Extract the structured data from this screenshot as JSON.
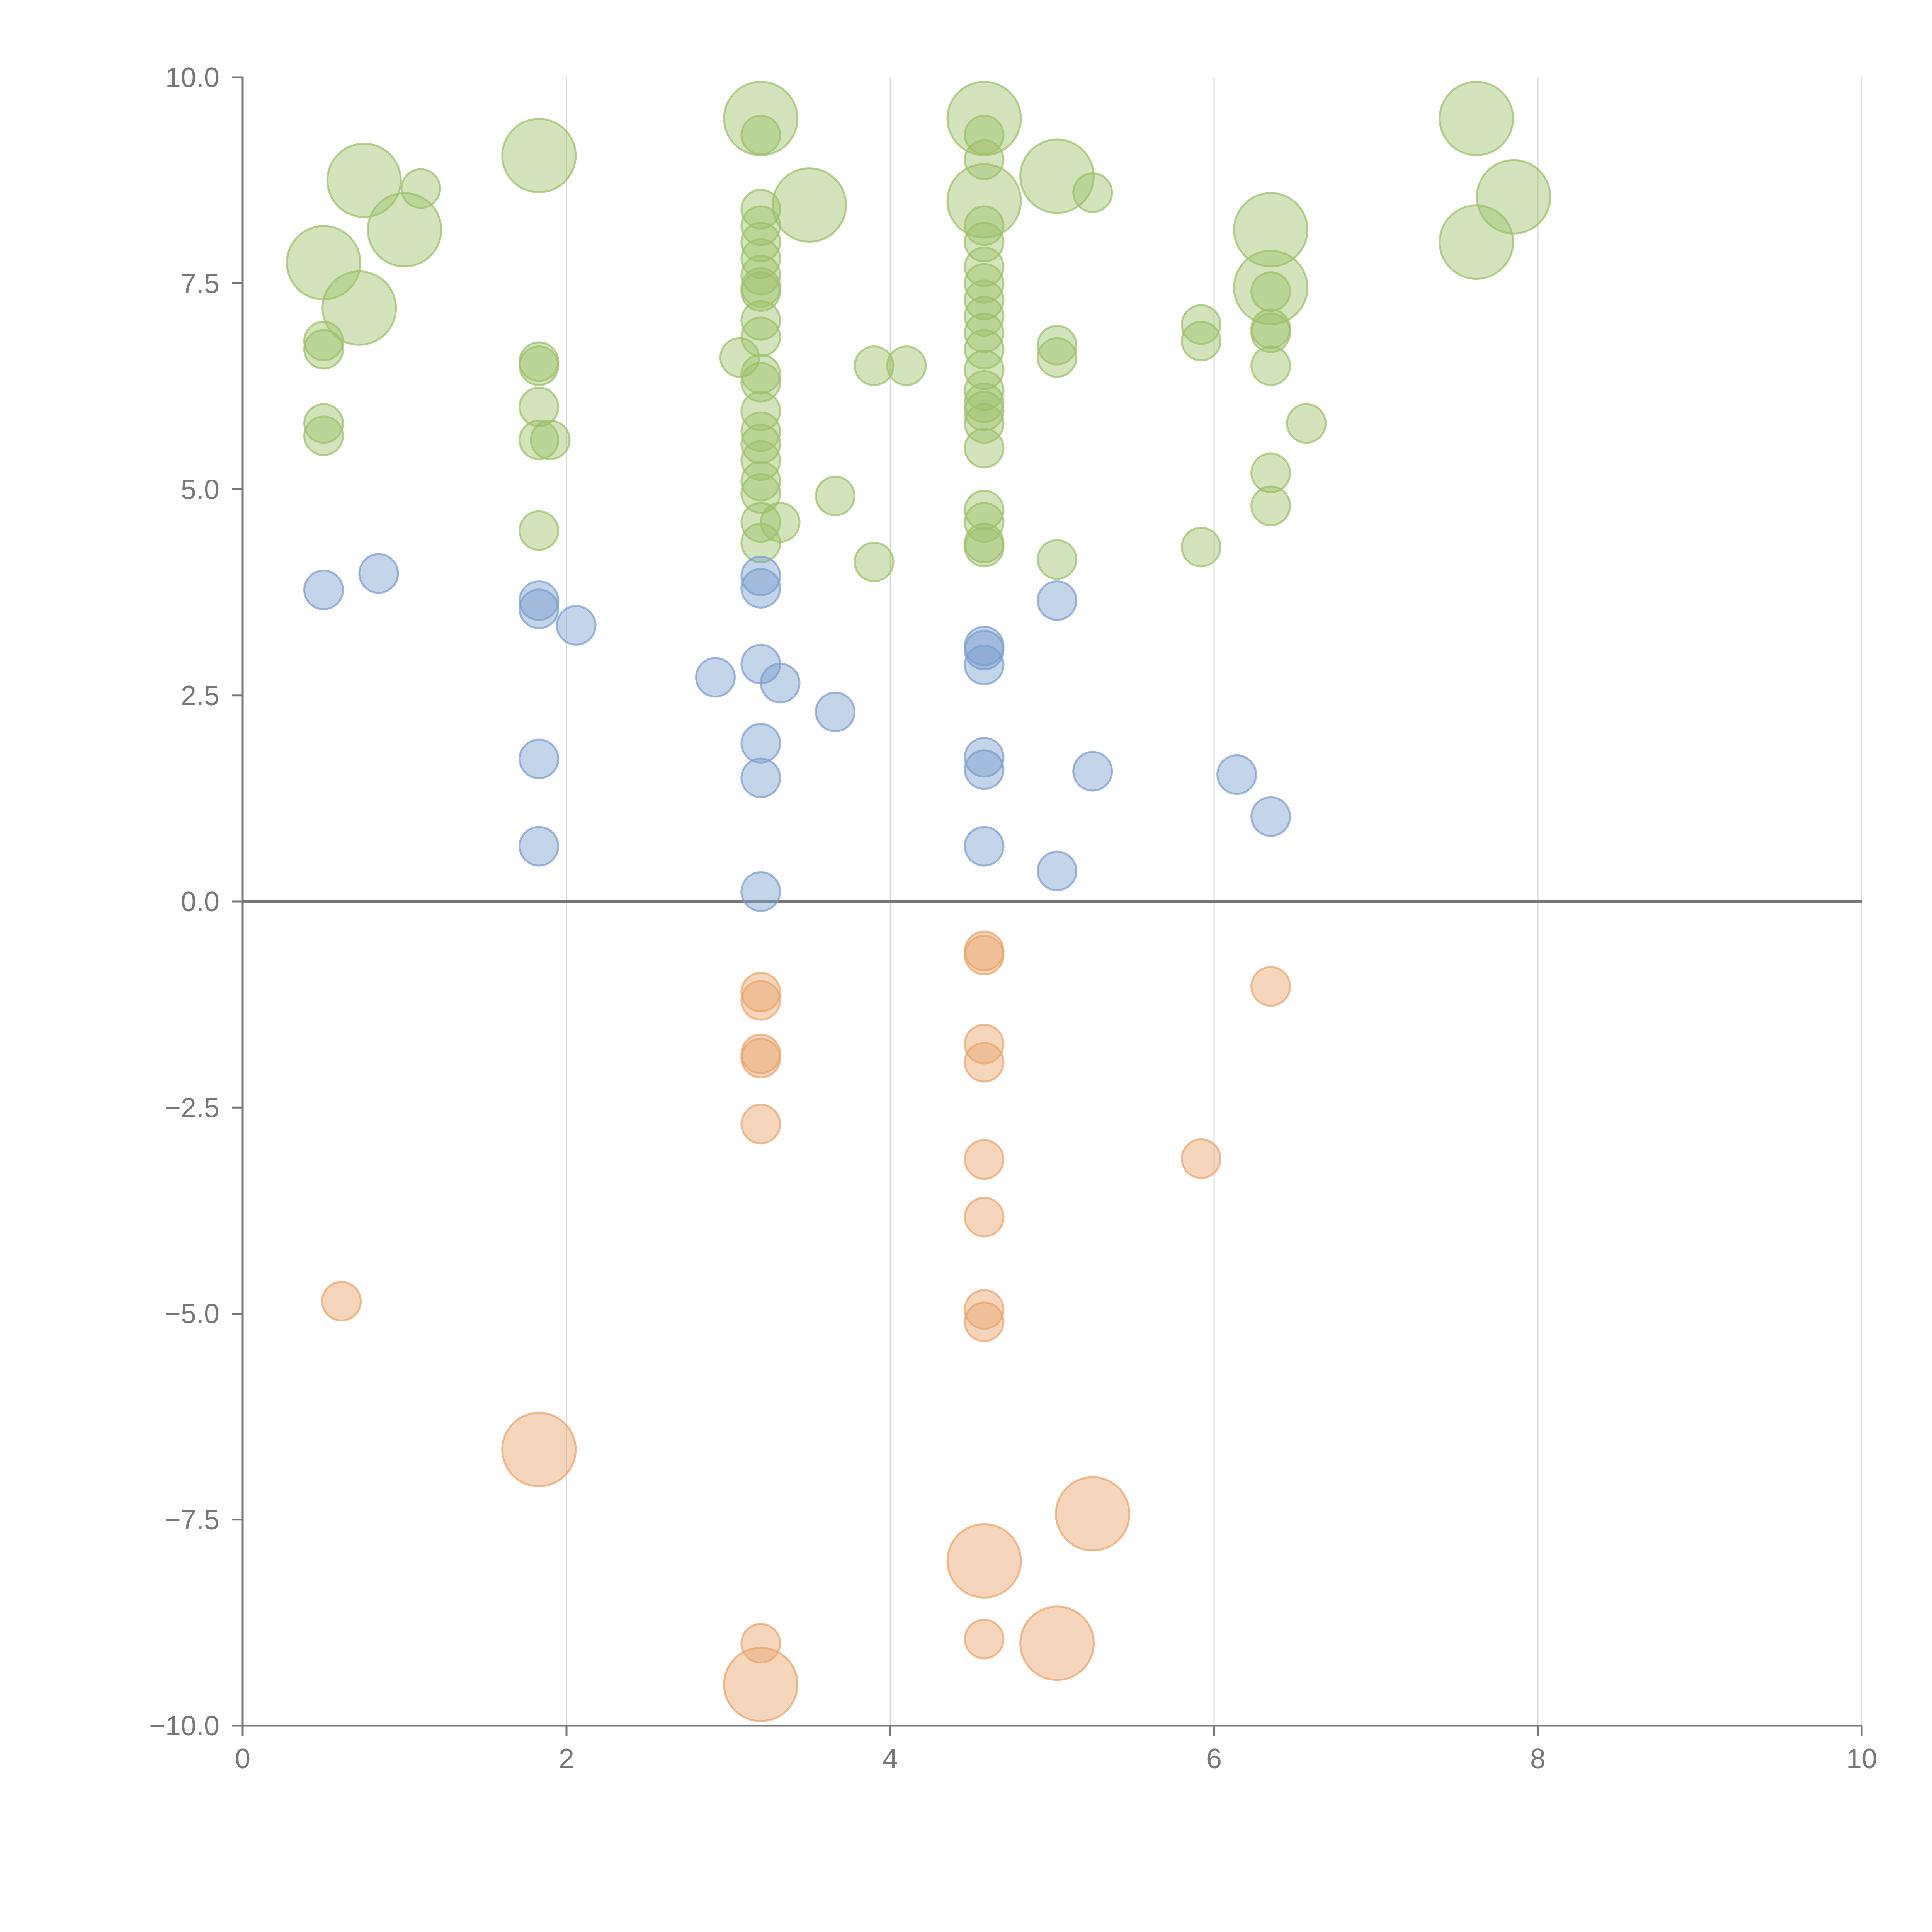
{
  "chart_data": {
    "type": "scatter",
    "title": "",
    "xlabel": "",
    "ylabel": "",
    "xlim": [
      0,
      10
    ],
    "ylim": [
      -10,
      10
    ],
    "grid": "vertical",
    "x_ticks": [
      "0",
      "2",
      "4",
      "6",
      "8",
      "10"
    ],
    "y_ticks": [
      "10.0",
      "7.5",
      "5.0",
      "2.5",
      "0.0",
      "−2.5",
      "−5.0",
      "−7.5",
      "−10.0"
    ],
    "colors": {
      "green": "#9dc06b",
      "blue": "#7d9fcf",
      "orange": "#e8a56c",
      "axis": "#777777",
      "grid": "#d9d9d9"
    },
    "series": [
      {
        "name": "green",
        "color": "#9dc06b",
        "points": [
          {
            "x": 0.75,
            "y": 8.75,
            "size": 2
          },
          {
            "x": 1.1,
            "y": 8.65,
            "size": 1
          },
          {
            "x": 1.0,
            "y": 8.15,
            "size": 2
          },
          {
            "x": 0.5,
            "y": 7.75,
            "size": 2
          },
          {
            "x": 0.72,
            "y": 7.2,
            "size": 2
          },
          {
            "x": 0.5,
            "y": 6.8,
            "size": 1
          },
          {
            "x": 0.5,
            "y": 6.7,
            "size": 1
          },
          {
            "x": 0.5,
            "y": 5.8,
            "size": 1
          },
          {
            "x": 0.5,
            "y": 5.65,
            "size": 1
          },
          {
            "x": 1.83,
            "y": 9.05,
            "size": 2
          },
          {
            "x": 1.83,
            "y": 6.55,
            "size": 1
          },
          {
            "x": 1.83,
            "y": 6.5,
            "size": 1
          },
          {
            "x": 1.83,
            "y": 6.0,
            "size": 1
          },
          {
            "x": 1.83,
            "y": 5.6,
            "size": 1
          },
          {
            "x": 1.9,
            "y": 5.6,
            "size": 1
          },
          {
            "x": 1.83,
            "y": 4.5,
            "size": 1
          },
          {
            "x": 3.2,
            "y": 9.5,
            "size": 2
          },
          {
            "x": 3.2,
            "y": 9.3,
            "size": 1
          },
          {
            "x": 3.5,
            "y": 8.45,
            "size": 2
          },
          {
            "x": 3.2,
            "y": 8.4,
            "size": 1
          },
          {
            "x": 3.2,
            "y": 8.2,
            "size": 1
          },
          {
            "x": 3.2,
            "y": 8.0,
            "size": 1
          },
          {
            "x": 3.2,
            "y": 7.8,
            "size": 1
          },
          {
            "x": 3.2,
            "y": 7.6,
            "size": 1
          },
          {
            "x": 3.2,
            "y": 7.45,
            "size": 1
          },
          {
            "x": 3.2,
            "y": 7.4,
            "size": 1
          },
          {
            "x": 3.2,
            "y": 7.05,
            "size": 1
          },
          {
            "x": 3.2,
            "y": 6.85,
            "size": 1
          },
          {
            "x": 3.07,
            "y": 6.6,
            "size": 1
          },
          {
            "x": 3.2,
            "y": 6.4,
            "size": 1
          },
          {
            "x": 3.2,
            "y": 6.3,
            "size": 1
          },
          {
            "x": 3.2,
            "y": 5.95,
            "size": 1
          },
          {
            "x": 3.2,
            "y": 5.7,
            "size": 1
          },
          {
            "x": 3.2,
            "y": 5.55,
            "size": 1
          },
          {
            "x": 3.2,
            "y": 5.35,
            "size": 1
          },
          {
            "x": 3.2,
            "y": 5.1,
            "size": 1
          },
          {
            "x": 3.2,
            "y": 4.95,
            "size": 1
          },
          {
            "x": 3.2,
            "y": 4.6,
            "size": 1
          },
          {
            "x": 3.32,
            "y": 4.6,
            "size": 1
          },
          {
            "x": 3.2,
            "y": 4.35,
            "size": 1
          },
          {
            "x": 3.66,
            "y": 4.92,
            "size": 1
          },
          {
            "x": 3.9,
            "y": 6.5,
            "size": 1
          },
          {
            "x": 4.1,
            "y": 6.5,
            "size": 1
          },
          {
            "x": 3.9,
            "y": 4.12,
            "size": 1
          },
          {
            "x": 4.58,
            "y": 9.5,
            "size": 2
          },
          {
            "x": 4.58,
            "y": 9.3,
            "size": 1
          },
          {
            "x": 4.58,
            "y": 9.0,
            "size": 1
          },
          {
            "x": 4.58,
            "y": 8.5,
            "size": 2
          },
          {
            "x": 4.58,
            "y": 8.2,
            "size": 1
          },
          {
            "x": 4.58,
            "y": 8.0,
            "size": 1
          },
          {
            "x": 4.58,
            "y": 7.7,
            "size": 1
          },
          {
            "x": 4.58,
            "y": 7.5,
            "size": 1
          },
          {
            "x": 4.58,
            "y": 7.3,
            "size": 1
          },
          {
            "x": 4.58,
            "y": 7.1,
            "size": 1
          },
          {
            "x": 4.58,
            "y": 6.9,
            "size": 1
          },
          {
            "x": 4.58,
            "y": 6.7,
            "size": 1
          },
          {
            "x": 4.58,
            "y": 6.45,
            "size": 1
          },
          {
            "x": 4.58,
            "y": 6.2,
            "size": 1
          },
          {
            "x": 4.58,
            "y": 6.05,
            "size": 1
          },
          {
            "x": 4.58,
            "y": 5.95,
            "size": 1
          },
          {
            "x": 4.58,
            "y": 5.8,
            "size": 1
          },
          {
            "x": 4.58,
            "y": 5.5,
            "size": 1
          },
          {
            "x": 4.58,
            "y": 4.75,
            "size": 1
          },
          {
            "x": 4.58,
            "y": 4.6,
            "size": 1
          },
          {
            "x": 4.58,
            "y": 4.35,
            "size": 1
          },
          {
            "x": 4.58,
            "y": 4.3,
            "size": 1
          },
          {
            "x": 5.03,
            "y": 8.8,
            "size": 2
          },
          {
            "x": 5.25,
            "y": 8.6,
            "size": 1
          },
          {
            "x": 5.03,
            "y": 6.75,
            "size": 1
          },
          {
            "x": 5.03,
            "y": 6.6,
            "size": 1
          },
          {
            "x": 5.03,
            "y": 4.15,
            "size": 1
          },
          {
            "x": 5.92,
            "y": 7.0,
            "size": 1
          },
          {
            "x": 5.92,
            "y": 6.8,
            "size": 1
          },
          {
            "x": 5.92,
            "y": 4.3,
            "size": 1
          },
          {
            "x": 6.35,
            "y": 8.15,
            "size": 2
          },
          {
            "x": 6.35,
            "y": 7.45,
            "size": 2
          },
          {
            "x": 6.35,
            "y": 7.4,
            "size": 1
          },
          {
            "x": 6.35,
            "y": 6.95,
            "size": 1
          },
          {
            "x": 6.35,
            "y": 6.9,
            "size": 1
          },
          {
            "x": 6.35,
            "y": 6.5,
            "size": 1
          },
          {
            "x": 6.57,
            "y": 5.8,
            "size": 1
          },
          {
            "x": 6.35,
            "y": 5.2,
            "size": 1
          },
          {
            "x": 6.35,
            "y": 4.8,
            "size": 1
          },
          {
            "x": 7.62,
            "y": 9.5,
            "size": 2
          },
          {
            "x": 7.85,
            "y": 8.55,
            "size": 2
          },
          {
            "x": 7.62,
            "y": 8.0,
            "size": 2
          }
        ]
      },
      {
        "name": "blue",
        "color": "#7d9fcf",
        "points": [
          {
            "x": 0.5,
            "y": 3.78,
            "size": 1
          },
          {
            "x": 0.84,
            "y": 3.98,
            "size": 1
          },
          {
            "x": 1.83,
            "y": 3.65,
            "size": 1
          },
          {
            "x": 1.83,
            "y": 3.55,
            "size": 1
          },
          {
            "x": 2.06,
            "y": 3.35,
            "size": 1
          },
          {
            "x": 1.83,
            "y": 1.73,
            "size": 1
          },
          {
            "x": 1.83,
            "y": 0.67,
            "size": 1
          },
          {
            "x": 3.2,
            "y": 3.95,
            "size": 1
          },
          {
            "x": 3.2,
            "y": 3.8,
            "size": 1
          },
          {
            "x": 3.2,
            "y": 2.88,
            "size": 1
          },
          {
            "x": 2.92,
            "y": 2.72,
            "size": 1
          },
          {
            "x": 3.32,
            "y": 2.65,
            "size": 1
          },
          {
            "x": 3.66,
            "y": 2.3,
            "size": 1
          },
          {
            "x": 3.2,
            "y": 1.92,
            "size": 1
          },
          {
            "x": 3.2,
            "y": 1.5,
            "size": 1
          },
          {
            "x": 3.2,
            "y": 0.12,
            "size": 1
          },
          {
            "x": 4.58,
            "y": 3.1,
            "size": 1
          },
          {
            "x": 4.58,
            "y": 3.05,
            "size": 1
          },
          {
            "x": 4.58,
            "y": 2.87,
            "size": 1
          },
          {
            "x": 4.58,
            "y": 1.75,
            "size": 1
          },
          {
            "x": 4.58,
            "y": 1.6,
            "size": 1
          },
          {
            "x": 4.58,
            "y": 0.67,
            "size": 1
          },
          {
            "x": 5.03,
            "y": 3.65,
            "size": 1
          },
          {
            "x": 5.25,
            "y": 1.58,
            "size": 1
          },
          {
            "x": 5.03,
            "y": 0.37,
            "size": 1
          },
          {
            "x": 6.14,
            "y": 1.54,
            "size": 1
          },
          {
            "x": 6.35,
            "y": 1.03,
            "size": 1
          }
        ]
      },
      {
        "name": "orange",
        "color": "#e8a56c",
        "points": [
          {
            "x": 3.2,
            "y": -1.1,
            "size": 1
          },
          {
            "x": 3.2,
            "y": -1.2,
            "size": 1
          },
          {
            "x": 3.2,
            "y": -1.85,
            "size": 1
          },
          {
            "x": 3.2,
            "y": -1.9,
            "size": 1
          },
          {
            "x": 3.2,
            "y": -2.7,
            "size": 1
          },
          {
            "x": 3.2,
            "y": -9.0,
            "size": 1
          },
          {
            "x": 3.2,
            "y": -9.5,
            "size": 2
          },
          {
            "x": 4.58,
            "y": -0.6,
            "size": 1
          },
          {
            "x": 4.58,
            "y": -0.65,
            "size": 1
          },
          {
            "x": 4.58,
            "y": -1.73,
            "size": 1
          },
          {
            "x": 4.58,
            "y": -1.95,
            "size": 1
          },
          {
            "x": 4.58,
            "y": -3.13,
            "size": 1
          },
          {
            "x": 4.58,
            "y": -3.83,
            "size": 1
          },
          {
            "x": 4.58,
            "y": -4.95,
            "size": 1
          },
          {
            "x": 4.58,
            "y": -5.1,
            "size": 1
          },
          {
            "x": 4.58,
            "y": -8.0,
            "size": 2
          },
          {
            "x": 4.58,
            "y": -8.95,
            "size": 1
          },
          {
            "x": 5.25,
            "y": -7.43,
            "size": 2
          },
          {
            "x": 5.03,
            "y": -9.0,
            "size": 2
          },
          {
            "x": 5.92,
            "y": -3.12,
            "size": 1
          },
          {
            "x": 6.35,
            "y": -1.03,
            "size": 1
          },
          {
            "x": 0.61,
            "y": -4.85,
            "size": 1
          },
          {
            "x": 1.83,
            "y": -6.65,
            "size": 2
          }
        ]
      }
    ]
  }
}
